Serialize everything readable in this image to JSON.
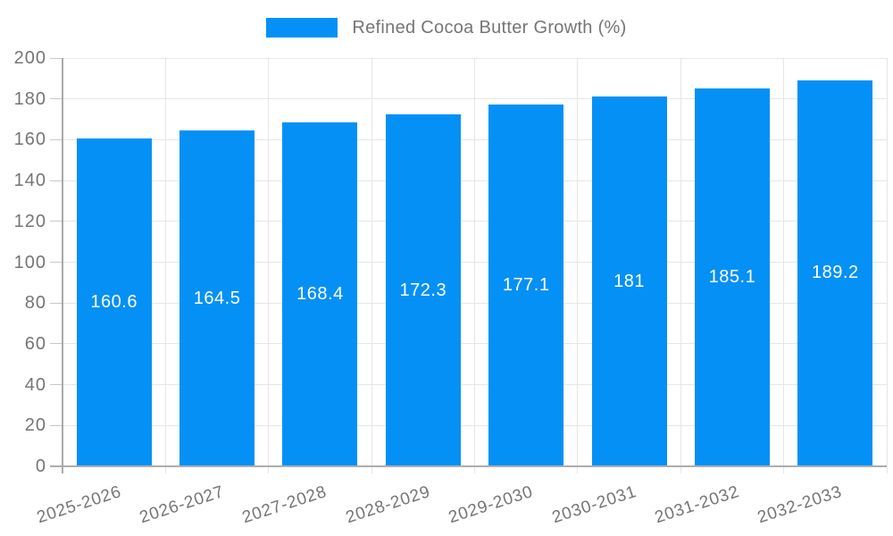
{
  "legend": {
    "label": "Refined Cocoa Butter Growth (%)"
  },
  "chart_data": {
    "type": "bar",
    "title": "",
    "categories": [
      "2025-2026",
      "2026-2027",
      "2027-2028",
      "2028-2029",
      "2029-2030",
      "2030-2031",
      "2031-2032",
      "2032-2033"
    ],
    "series": [
      {
        "name": "Refined Cocoa Butter Growth (%)",
        "values": [
          160.6,
          164.5,
          168.4,
          172.3,
          177.1,
          181,
          185.1,
          189.2
        ]
      }
    ],
    "value_labels": [
      "160.6",
      "164.5",
      "168.4",
      "172.3",
      "177.1",
      "181",
      "185.1",
      "189.2"
    ],
    "xlabel": "",
    "ylabel": "",
    "ylim": [
      0,
      200
    ],
    "ytick_step": 20,
    "yticks": [
      "0",
      "20",
      "40",
      "60",
      "80",
      "100",
      "120",
      "140",
      "160",
      "180",
      "200"
    ],
    "grid": true,
    "legend_position": "top",
    "value_label_position": "center-of-bar",
    "colors": {
      "bar": "#0590f5",
      "grid_line": "#e6e6e6",
      "axis_line": "#adadad",
      "tick_text": "#757575",
      "value_text": "#ffffff",
      "background": "#ffffff"
    }
  }
}
